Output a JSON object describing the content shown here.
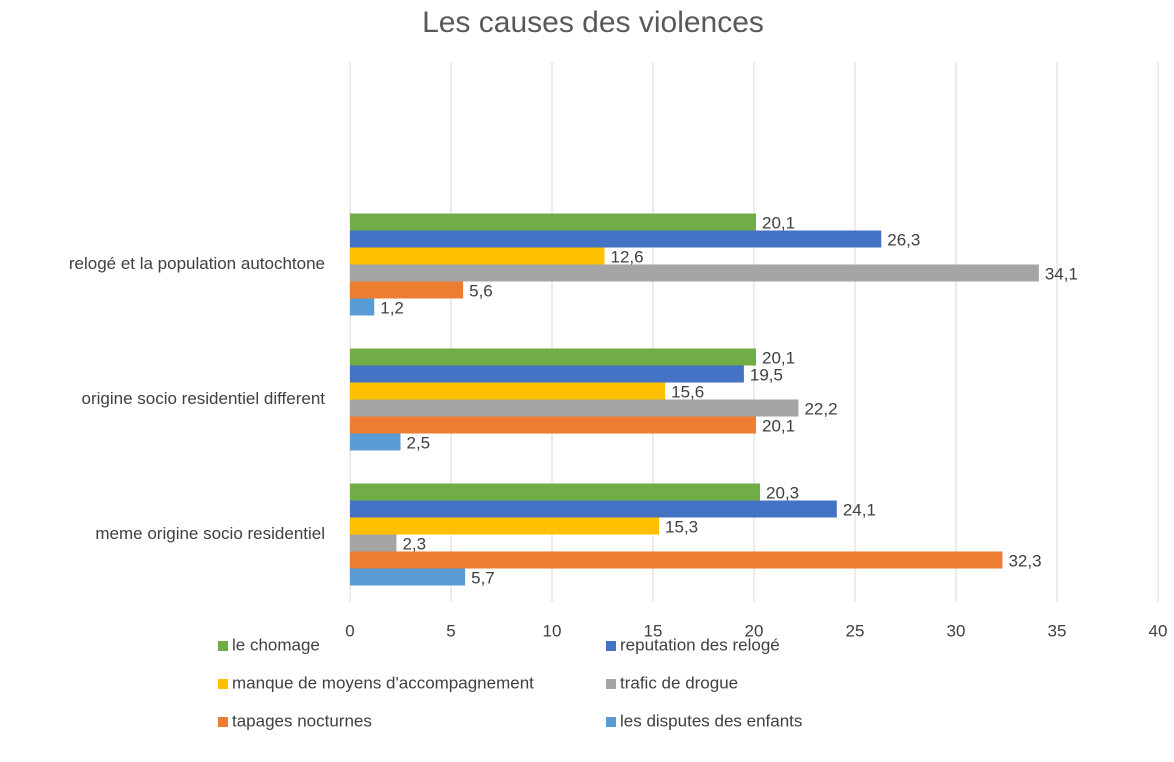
{
  "chart_data": {
    "type": "hbar",
    "title": "Les causes des violences",
    "categories": [
      "meme origine socio residentiel",
      "origine socio residentiel different",
      "relogé et la population autochtone",
      null
    ],
    "series": [
      {
        "name": "le chomage",
        "color": "#70ad47",
        "values": [
          20.3,
          20.1,
          20.1,
          null
        ],
        "value_labels": [
          "20,3",
          "20,1",
          "20,1",
          null
        ]
      },
      {
        "name": "reputation des relogé",
        "color": "#4472c4",
        "values": [
          24.1,
          19.5,
          26.3,
          null
        ],
        "value_labels": [
          "24,1",
          "19,5",
          "26,3",
          null
        ]
      },
      {
        "name": "manque de moyens d'accompagnement",
        "color": "#ffc000",
        "values": [
          15.3,
          15.6,
          12.6,
          null
        ],
        "value_labels": [
          "15,3",
          "15,6",
          "12,6",
          null
        ]
      },
      {
        "name": "trafic de drogue",
        "color": "#a5a5a5",
        "values": [
          2.3,
          22.2,
          34.1,
          null
        ],
        "value_labels": [
          "2,3",
          "22,2",
          "34,1",
          null
        ]
      },
      {
        "name": "tapages nocturnes",
        "color": "#ed7d31",
        "values": [
          32.3,
          20.1,
          5.6,
          null
        ],
        "value_labels": [
          "32,3",
          "20,1",
          "5,6",
          null
        ]
      },
      {
        "name": "les disputes des enfants",
        "color": "#5b9bd5",
        "values": [
          5.7,
          2.5,
          1.2,
          null
        ],
        "value_labels": [
          "5,7",
          "2,5",
          "1,2",
          null
        ]
      }
    ],
    "xlim": [
      0,
      40
    ],
    "xticks": [
      0,
      5,
      10,
      15,
      20,
      25,
      30,
      35,
      40
    ],
    "grid": true
  }
}
